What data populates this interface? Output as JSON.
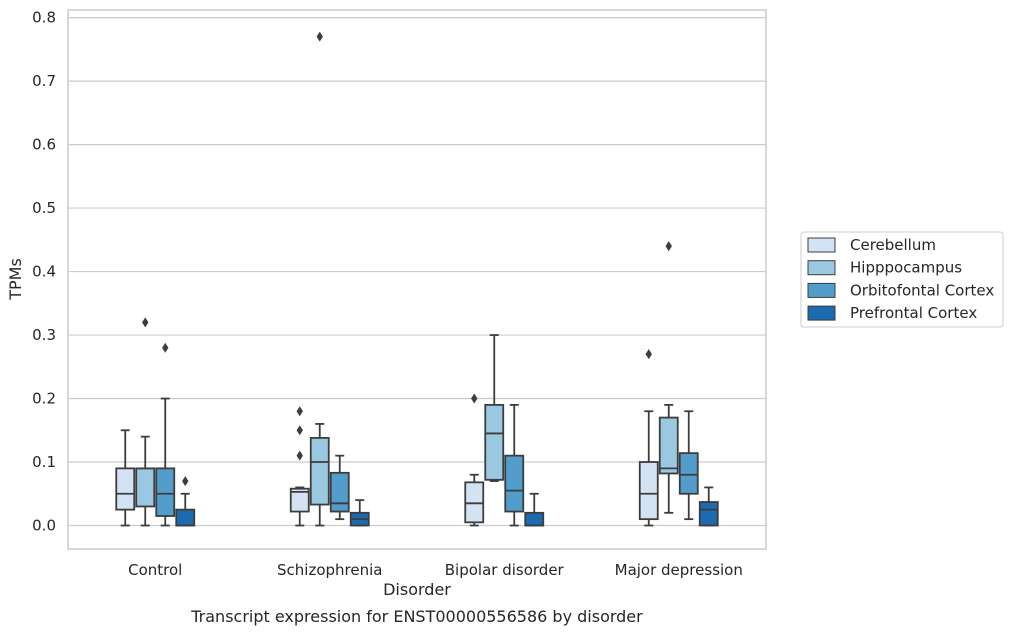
{
  "chart_data": {
    "type": "box",
    "title": "",
    "caption": "Transcript expression for ENST00000556586 by disorder",
    "xlabel": "Disorder",
    "ylabel": "TPMs",
    "ylim": [
      -0.037,
      0.812
    ],
    "yticks": [
      0.0,
      0.1,
      0.2,
      0.3,
      0.4,
      0.5,
      0.6,
      0.7,
      0.8
    ],
    "ytick_labels": [
      "0.0",
      "0.1",
      "0.2",
      "0.3",
      "0.4",
      "0.5",
      "0.6",
      "0.7",
      "0.8"
    ],
    "grid": "horizontal",
    "legend_position": "right",
    "categories": [
      "Control",
      "Schizophrenia",
      "Bipolar disorder",
      "Major depression"
    ],
    "series": [
      {
        "name": "Cerebellum",
        "color": "#d3e3f3",
        "boxes": [
          {
            "whisker_low": 0.0,
            "q1": 0.025,
            "median": 0.05,
            "q3": 0.09,
            "whisker_high": 0.15,
            "outliers": []
          },
          {
            "whisker_low": 0.0,
            "q1": 0.022,
            "median": 0.053,
            "q3": 0.058,
            "whisker_high": 0.06,
            "outliers": [
              0.18,
              0.15,
              0.11
            ]
          },
          {
            "whisker_low": 0.0,
            "q1": 0.005,
            "median": 0.035,
            "q3": 0.068,
            "whisker_high": 0.08,
            "outliers": [
              0.2
            ]
          },
          {
            "whisker_low": 0.0,
            "q1": 0.01,
            "median": 0.05,
            "q3": 0.1,
            "whisker_high": 0.18,
            "outliers": [
              0.27
            ]
          }
        ]
      },
      {
        "name": "Hipppocampus",
        "color": "#9ac8e0",
        "boxes": [
          {
            "whisker_low": 0.0,
            "q1": 0.03,
            "median": 0.09,
            "q3": 0.09,
            "whisker_high": 0.14,
            "outliers": [
              0.32
            ]
          },
          {
            "whisker_low": 0.0,
            "q1": 0.033,
            "median": 0.1,
            "q3": 0.138,
            "whisker_high": 0.16,
            "outliers": [
              0.77
            ]
          },
          {
            "whisker_low": 0.07,
            "q1": 0.072,
            "median": 0.145,
            "q3": 0.19,
            "whisker_high": 0.3,
            "outliers": []
          },
          {
            "whisker_low": 0.02,
            "q1": 0.082,
            "median": 0.09,
            "q3": 0.17,
            "whisker_high": 0.19,
            "outliers": [
              0.44
            ]
          }
        ]
      },
      {
        "name": "Orbitofontal Cortex",
        "color": "#529dcc",
        "boxes": [
          {
            "whisker_low": 0.0,
            "q1": 0.015,
            "median": 0.05,
            "q3": 0.09,
            "whisker_high": 0.2,
            "outliers": [
              0.28
            ]
          },
          {
            "whisker_low": 0.01,
            "q1": 0.022,
            "median": 0.035,
            "q3": 0.083,
            "whisker_high": 0.11,
            "outliers": []
          },
          {
            "whisker_low": 0.0,
            "q1": 0.022,
            "median": 0.055,
            "q3": 0.11,
            "whisker_high": 0.19,
            "outliers": []
          },
          {
            "whisker_low": 0.01,
            "q1": 0.05,
            "median": 0.08,
            "q3": 0.114,
            "whisker_high": 0.18,
            "outliers": []
          }
        ]
      },
      {
        "name": "Prefrontal Cortex",
        "color": "#1c6aaf",
        "boxes": [
          {
            "whisker_low": 0.0,
            "q1": 0.0,
            "median": 0.0,
            "q3": 0.025,
            "whisker_high": 0.05,
            "outliers": [
              0.07
            ]
          },
          {
            "whisker_low": 0.0,
            "q1": 0.0,
            "median": 0.01,
            "q3": 0.02,
            "whisker_high": 0.04,
            "outliers": []
          },
          {
            "whisker_low": 0.0,
            "q1": 0.0,
            "median": 0.0,
            "q3": 0.02,
            "whisker_high": 0.05,
            "outliers": []
          },
          {
            "whisker_low": 0.0,
            "q1": 0.0,
            "median": 0.025,
            "q3": 0.037,
            "whisker_high": 0.06,
            "outliers": []
          }
        ]
      }
    ]
  }
}
